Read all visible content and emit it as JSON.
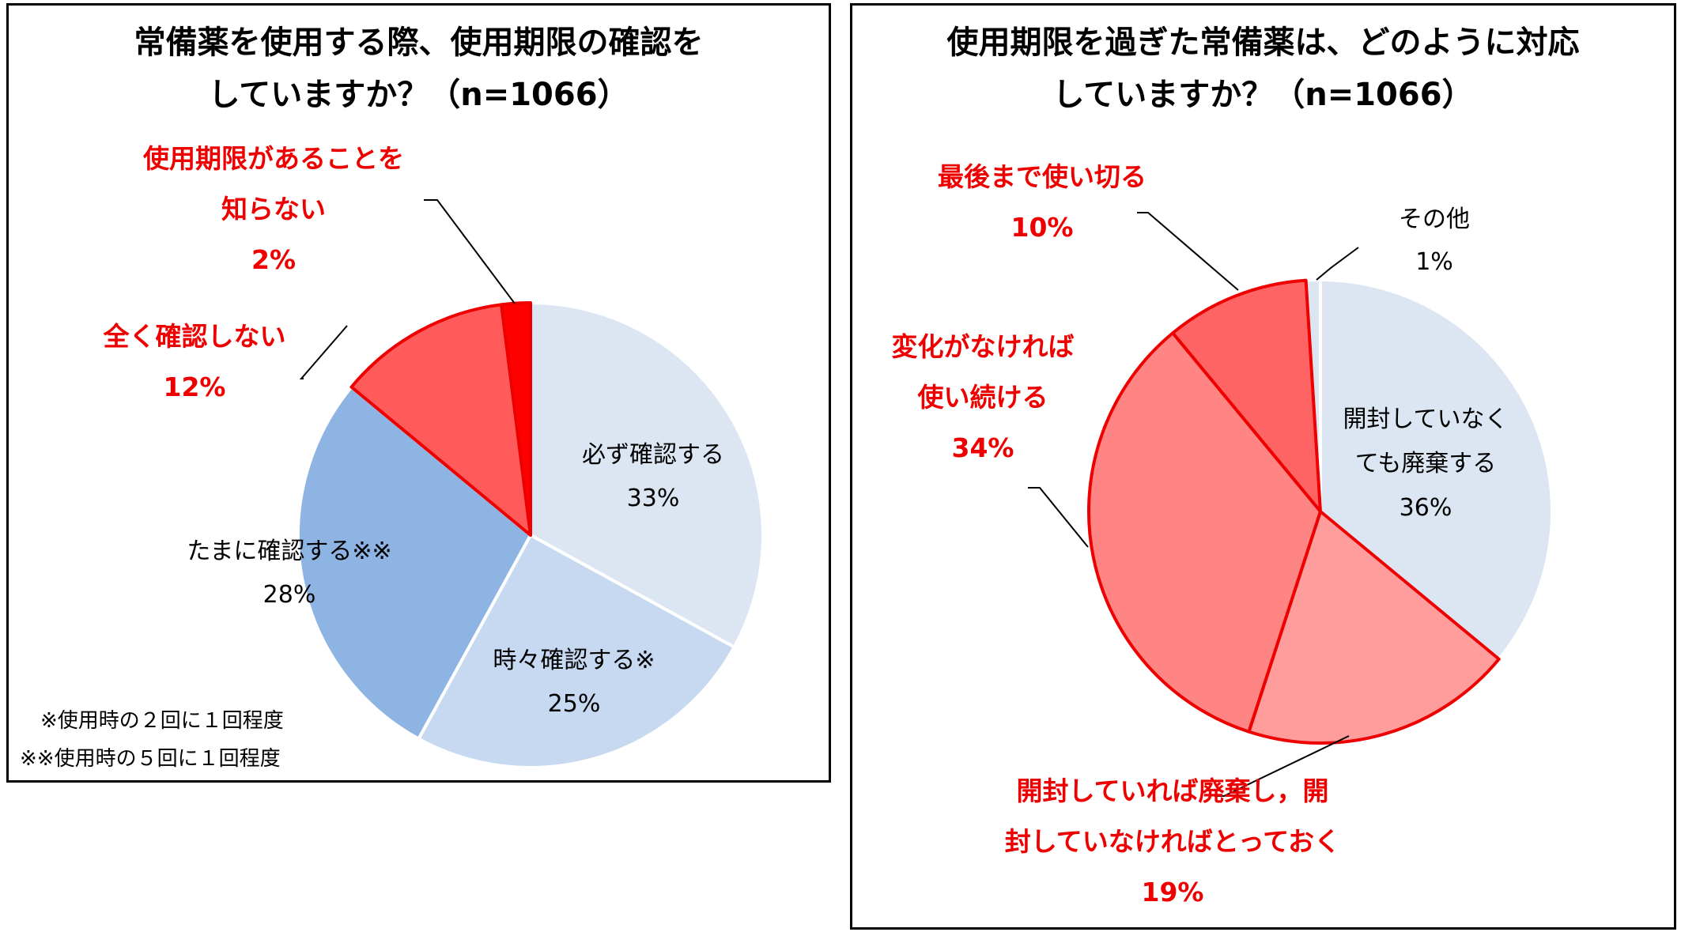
{
  "chart_data": [
    {
      "type": "pie",
      "title": [
        "常備薬を使用する際、使用期限の確認を",
        "していますか？（n=1066）"
      ],
      "slices": [
        {
          "label": [
            "必ず確認する"
          ],
          "pct": "33%",
          "value": 33,
          "color": "#dce6f2",
          "edge": "#ffffff"
        },
        {
          "label": [
            "時々確認する※"
          ],
          "pct": "25%",
          "value": 25,
          "color": "#c6d9f1",
          "edge": "#ffffff"
        },
        {
          "label": [
            "たまに確認する※※"
          ],
          "pct": "28%",
          "value": 28,
          "color": "#8db4e2",
          "edge": "#ffffff"
        },
        {
          "label": [
            "全く確認しない"
          ],
          "pct": "12%",
          "value": 12,
          "color": "#ff5b5b",
          "edge": "#ee0000",
          "emphasis": true
        },
        {
          "label": [
            "使用期限があることを",
            "知らない"
          ],
          "pct": "2%",
          "value": 2,
          "color": "#ff0000",
          "edge": "#ee0000",
          "emphasis": true
        }
      ],
      "notes": [
        "※使用時の２回に１回程度",
        "※※使用時の５回に１回程度"
      ]
    },
    {
      "type": "pie",
      "title": [
        "使用期限を過ぎた常備薬は、どのように対応",
        "していますか？（n=1066）"
      ],
      "slices": [
        {
          "label": [
            "開封していなく",
            "ても廃棄する"
          ],
          "pct": "36%",
          "value": 36,
          "color": "#dce6f2",
          "edge": "#ffffff"
        },
        {
          "label": [
            "開封していれば廃棄し，開",
            "封していなければとっておく"
          ],
          "pct": "19%",
          "value": 19,
          "color": "#ff9c9c",
          "edge": "#ee0000",
          "emphasis": true
        },
        {
          "label": [
            "変化がなければ",
            "使い続ける"
          ],
          "pct": "34%",
          "value": 34,
          "color": "#ff8585",
          "edge": "#ee0000",
          "emphasis": true
        },
        {
          "label": [
            "最後まで使い切る"
          ],
          "pct": "10%",
          "value": 10,
          "color": "#ff6464",
          "edge": "#ee0000",
          "emphasis": true
        },
        {
          "label": [
            "その他"
          ],
          "pct": "1%",
          "value": 1,
          "color": "#dce6f2",
          "edge": "#ffffff"
        }
      ]
    }
  ]
}
